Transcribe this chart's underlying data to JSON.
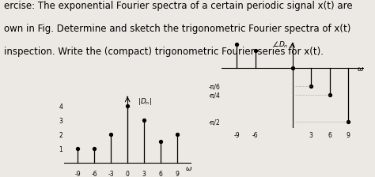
{
  "text_lines": [
    "ercise: The exponential Fourier spectra of a certain periodic signal x(t) are",
    "own in Fig. Determine and sketch the trigonometric Fourier spectra of x(t)",
    "inspection. Write the (compact) trigonometric Fourier series for x(t)."
  ],
  "left_plot": {
    "xticks": [
      -9,
      -6,
      -3,
      0,
      3,
      6,
      9
    ],
    "yticks": [
      1,
      2,
      3,
      4
    ],
    "xlim": [
      -11.5,
      11.5
    ],
    "ylim": [
      -0.5,
      5.0
    ],
    "stems_x": [
      -9,
      -6,
      -3,
      0,
      3,
      6,
      9
    ],
    "stems_y": [
      1,
      1,
      2,
      4,
      3,
      1.5,
      2
    ],
    "ylabel": "|D_n|"
  },
  "right_plot": {
    "xticks": [
      -9,
      -6,
      3,
      6,
      9
    ],
    "ytick_vals": [
      -0.5236,
      -0.7854,
      -1.5708
    ],
    "ytick_labels": [
      "-π/6",
      "-π/4",
      "-π/2"
    ],
    "xlim": [
      -11.5,
      11.5
    ],
    "ylim": [
      -1.85,
      0.85
    ],
    "stems_x": [
      -9,
      -6,
      0,
      3,
      6,
      9
    ],
    "stems_y": [
      0.7,
      0.5,
      0,
      -0.5236,
      -0.7854,
      -1.5708
    ],
    "ylabel": "∠D_n"
  },
  "bg_color": "#ece9e4",
  "text_fontsize": 8.5
}
